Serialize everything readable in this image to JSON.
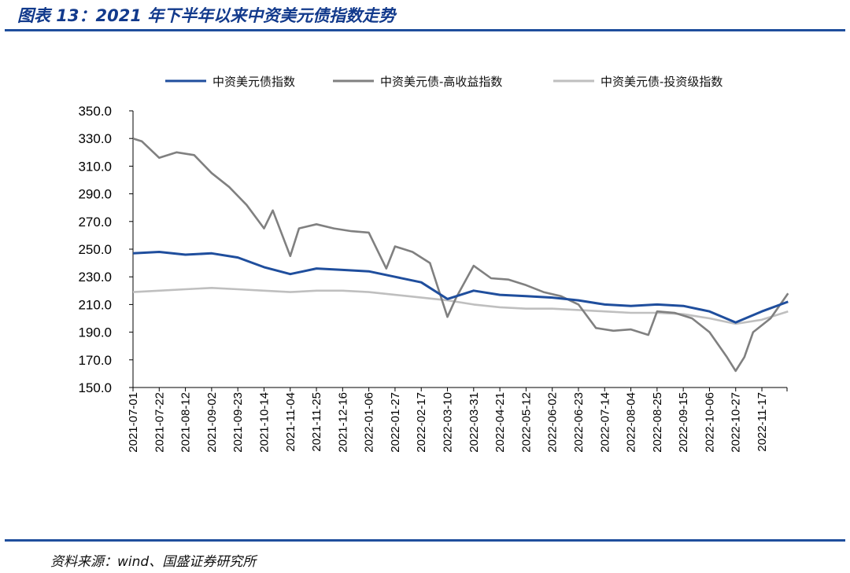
{
  "header": {
    "title": "图表 13：2021 年下半年以来中资美元债指数走势"
  },
  "footer": {
    "source": "资料来源：wind、国盛证券研究所"
  },
  "chart_data": {
    "type": "line",
    "ylim": [
      150.0,
      350.0
    ],
    "yticks": [
      "350.0",
      "330.0",
      "310.0",
      "290.0",
      "270.0",
      "250.0",
      "230.0",
      "210.0",
      "190.0",
      "170.0",
      "150.0"
    ],
    "x_ticks": [
      "2021-07-01",
      "2021-07-22",
      "2021-08-12",
      "2021-09-02",
      "2021-09-23",
      "2021-10-14",
      "2021-11-04",
      "2021-11-25",
      "2021-12-16",
      "2022-01-06",
      "2022-01-27",
      "2022-02-17",
      "2022-03-10",
      "2022-03-31",
      "2022-04-21",
      "2022-05-12",
      "2022-06-02",
      "2022-06-23",
      "2022-07-14",
      "2022-08-04",
      "2022-08-25",
      "2022-09-15",
      "2022-10-06",
      "2022-10-27",
      "2022-11-17"
    ],
    "grid": false,
    "legend_position": "top",
    "series": [
      {
        "name": "中资美元债指数",
        "color": "#1f4e9d",
        "x": [
          "2021-07-01",
          "2021-07-22",
          "2021-08-12",
          "2021-09-02",
          "2021-09-23",
          "2021-10-14",
          "2021-11-04",
          "2021-11-25",
          "2021-12-16",
          "2022-01-06",
          "2022-01-27",
          "2022-02-17",
          "2022-03-10",
          "2022-03-31",
          "2022-04-21",
          "2022-05-12",
          "2022-06-02",
          "2022-06-23",
          "2022-07-14",
          "2022-08-04",
          "2022-08-25",
          "2022-09-15",
          "2022-10-06",
          "2022-10-27",
          "2022-11-17",
          "2022-12-08"
        ],
        "values": [
          247,
          248,
          246,
          247,
          244,
          237,
          232,
          236,
          235,
          234,
          230,
          226,
          214,
          220,
          217,
          216,
          215,
          213,
          210,
          209,
          210,
          209,
          205,
          197,
          205,
          212
        ]
      },
      {
        "name": "中资美元债-高收益指数",
        "color": "#808080",
        "x": [
          "2021-07-01",
          "2021-07-08",
          "2021-07-22",
          "2021-08-05",
          "2021-08-19",
          "2021-09-02",
          "2021-09-16",
          "2021-09-30",
          "2021-10-14",
          "2021-10-21",
          "2021-11-04",
          "2021-11-11",
          "2021-11-25",
          "2021-12-09",
          "2021-12-23",
          "2022-01-06",
          "2022-01-20",
          "2022-01-27",
          "2022-02-10",
          "2022-02-24",
          "2022-03-10",
          "2022-03-17",
          "2022-03-31",
          "2022-04-14",
          "2022-04-28",
          "2022-05-12",
          "2022-05-26",
          "2022-06-09",
          "2022-06-23",
          "2022-07-07",
          "2022-07-21",
          "2022-08-04",
          "2022-08-18",
          "2022-08-25",
          "2022-09-08",
          "2022-09-22",
          "2022-10-06",
          "2022-10-20",
          "2022-10-27",
          "2022-11-03",
          "2022-11-10",
          "2022-11-24",
          "2022-12-08"
        ],
        "values": [
          330,
          328,
          316,
          320,
          318,
          305,
          295,
          282,
          265,
          278,
          245,
          265,
          268,
          265,
          263,
          262,
          236,
          252,
          248,
          240,
          201,
          215,
          238,
          229,
          228,
          224,
          219,
          216,
          210,
          193,
          191,
          192,
          188,
          205,
          204,
          200,
          190,
          172,
          162,
          172,
          190,
          200,
          218
        ]
      },
      {
        "name": "中资美元债-投资级指数",
        "color": "#bfbfbf",
        "x": [
          "2021-07-01",
          "2021-07-22",
          "2021-08-12",
          "2021-09-02",
          "2021-09-23",
          "2021-10-14",
          "2021-11-04",
          "2021-11-25",
          "2021-12-16",
          "2022-01-06",
          "2022-01-27",
          "2022-02-17",
          "2022-03-10",
          "2022-03-31",
          "2022-04-21",
          "2022-05-12",
          "2022-06-02",
          "2022-06-23",
          "2022-07-14",
          "2022-08-04",
          "2022-08-25",
          "2022-09-15",
          "2022-10-06",
          "2022-10-27",
          "2022-11-17",
          "2022-12-08"
        ],
        "values": [
          219,
          220,
          221,
          222,
          221,
          220,
          219,
          220,
          220,
          219,
          217,
          215,
          213,
          210,
          208,
          207,
          207,
          206,
          205,
          204,
          204,
          203,
          200,
          196,
          199,
          205
        ]
      }
    ]
  }
}
